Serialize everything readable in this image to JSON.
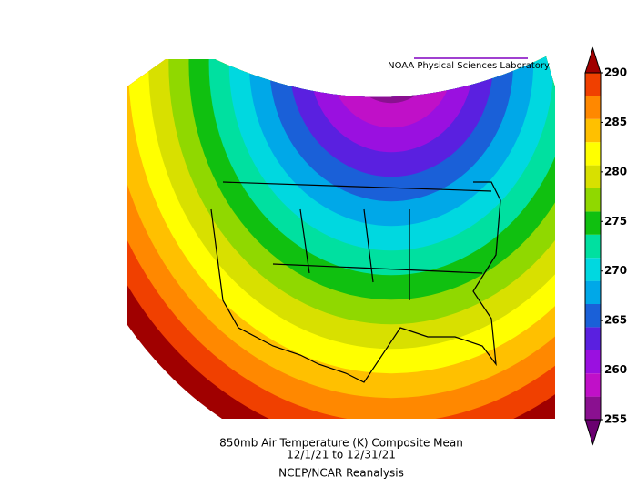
{
  "credit": "NOAA Physical Sciences Laboratory",
  "title": "850mb Air Temperature (K) Composite Mean",
  "dates": "12/1/21  to 12/31/21",
  "source": "NCEP/NCAR Reanalysis",
  "colorbar": {
    "ticks": [
      255,
      260,
      265,
      270,
      275,
      280,
      285,
      290
    ],
    "colors": [
      "#6a0070",
      "#8a1090",
      "#c010c8",
      "#9a10e0",
      "#5a20e0",
      "#1a60d8",
      "#00a8e8",
      "#00d8e0",
      "#00e0a0",
      "#10c010",
      "#90d800",
      "#d8e000",
      "#ffff00",
      "#ffc000",
      "#ff8800",
      "#f04000",
      "#a00000"
    ]
  }
}
